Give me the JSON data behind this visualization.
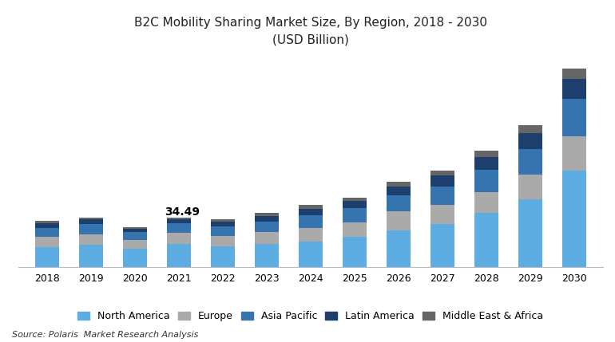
{
  "title_line1": "B2C Mobility Sharing Market Size, By Region, 2018 - 2030",
  "title_line2": "(USD Billion)",
  "years": [
    2018,
    2019,
    2020,
    2021,
    2022,
    2023,
    2024,
    2025,
    2026,
    2027,
    2028,
    2029,
    2030
  ],
  "annotation_text": "34.49",
  "annotation_year": 2021,
  "regions": [
    "North America",
    "Europe",
    "Asia Pacific",
    "Latin America",
    "Middle East & Africa"
  ],
  "colors": [
    "#5DADE2",
    "#AAAAAA",
    "#3674B0",
    "#1C3F6E",
    "#666666"
  ],
  "data": {
    "North America": [
      14.0,
      15.5,
      12.5,
      16.0,
      14.5,
      16.0,
      18.0,
      21.0,
      26.0,
      30.0,
      38.0,
      48.0,
      68.0
    ],
    "Europe": [
      7.0,
      7.5,
      6.5,
      8.0,
      7.5,
      8.5,
      9.5,
      10.5,
      13.0,
      14.0,
      15.0,
      17.0,
      24.0
    ],
    "Asia Pacific": [
      6.5,
      7.0,
      5.5,
      7.0,
      6.5,
      7.5,
      9.0,
      10.0,
      11.5,
      13.0,
      15.5,
      18.0,
      27.0
    ],
    "Latin America": [
      3.5,
      3.5,
      2.5,
      2.5,
      3.5,
      4.0,
      4.5,
      5.0,
      6.5,
      7.5,
      9.0,
      11.5,
      14.0
    ],
    "Middle East & Africa": [
      1.5,
      1.5,
      1.0,
      0.99,
      1.5,
      2.0,
      2.5,
      2.5,
      3.0,
      3.5,
      4.5,
      5.5,
      7.0
    ]
  },
  "source_text": "Source: Polaris  Market Research Analysis",
  "background_color": "#FFFFFF",
  "bar_width": 0.55,
  "ylim_max": 150,
  "legend_fontsize": 9,
  "title_fontsize": 11,
  "annotation_year_idx": 3
}
